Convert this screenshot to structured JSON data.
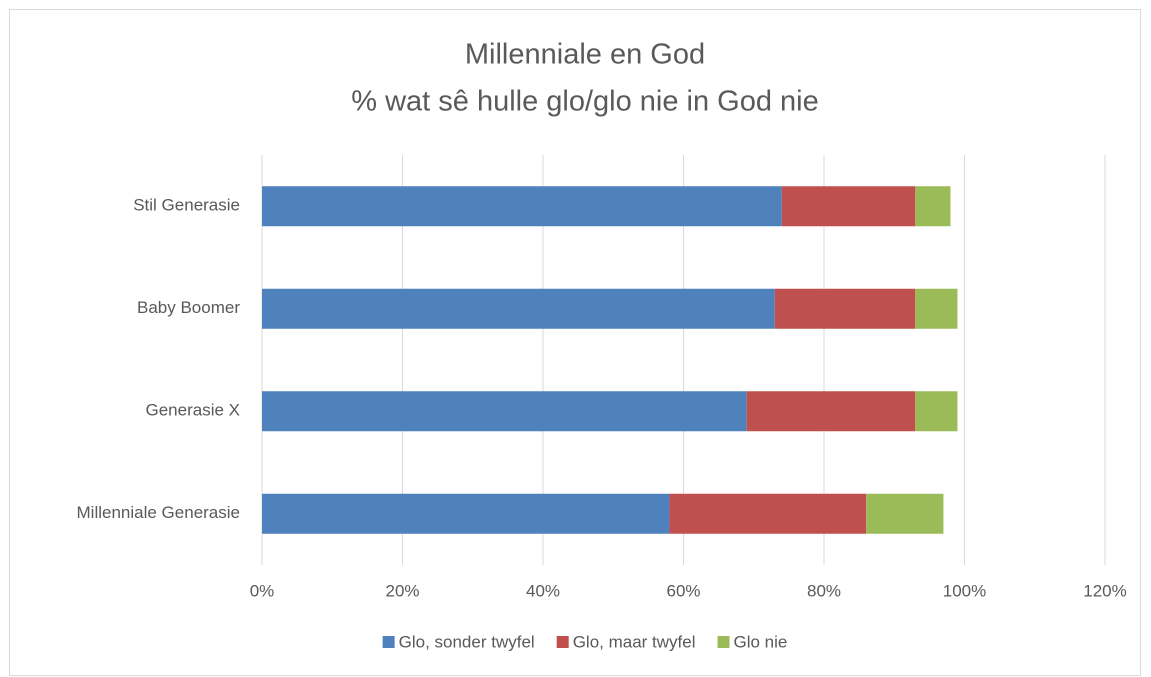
{
  "chart_data": {
    "type": "stacked-bar-horizontal",
    "title": "Millenniale en God",
    "subtitle": "% wat sê hulle glo/glo nie in God nie",
    "categories": [
      "Stil Generasie",
      "Baby Boomer",
      "Generasie X",
      "Millenniale Generasie"
    ],
    "series": [
      {
        "name": "Glo, sonder twyfel",
        "color": "#4f81bd",
        "values": [
          74,
          73,
          69,
          58
        ]
      },
      {
        "name": "Glo, maar twyfel",
        "color": "#c0504d",
        "values": [
          19,
          20,
          24,
          28
        ]
      },
      {
        "name": "Glo nie",
        "color": "#9bbb59",
        "values": [
          5,
          6,
          6,
          11
        ]
      }
    ],
    "xlim": [
      0,
      120
    ],
    "xticks": [
      {
        "value": 0,
        "label": "0%"
      },
      {
        "value": 20,
        "label": "20%"
      },
      {
        "value": 40,
        "label": "40%"
      },
      {
        "value": 60,
        "label": "60%"
      },
      {
        "value": 80,
        "label": "80%"
      },
      {
        "value": 100,
        "label": "100%"
      },
      {
        "value": 120,
        "label": "120%"
      }
    ],
    "grid": true,
    "legend": "bottom"
  }
}
